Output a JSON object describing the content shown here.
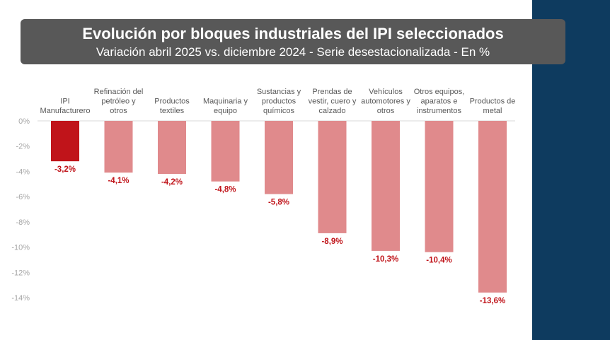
{
  "header": {
    "title": "Evolución por bloques industriales del IPI seleccionados",
    "subtitle": "Variación abril 2025 vs. diciembre 2024  - Serie desestacionalizada - En %"
  },
  "colors": {
    "highlight_bar": "#c0141a",
    "bar": "#e08a8c",
    "highlight_label": "#c0141a",
    "label": "#c0141a",
    "side_band": "#0e3b5f",
    "title_bg": "#585858"
  },
  "chart_data": {
    "type": "bar",
    "categories": [
      [
        "IPI",
        "Manufacturero"
      ],
      [
        "Refinación del",
        "petróleo y",
        "otros"
      ],
      [
        "Productos",
        "textiles"
      ],
      [
        "Maquinaria y",
        "equipo"
      ],
      [
        "Sustancias y",
        "productos",
        "químicos"
      ],
      [
        "Prendas de",
        "vestir, cuero y",
        "calzado"
      ],
      [
        "Vehículos",
        "automotores y",
        "otros"
      ],
      [
        "Otros equipos,",
        "aparatos e",
        "instrumentos"
      ],
      [
        "Productos de",
        "metal"
      ]
    ],
    "values": [
      -3.2,
      -4.1,
      -4.2,
      -4.8,
      -5.8,
      -8.9,
      -10.3,
      -10.4,
      -13.6
    ],
    "data_labels": [
      "-3,2%",
      "-4,1%",
      "-4,2%",
      "-4,8%",
      "-5,8%",
      "-8,9%",
      "-10,3%",
      "-10,4%",
      "-13,6%"
    ],
    "highlight_index": 0,
    "y_ticks": [
      0,
      -2,
      -4,
      -6,
      -8,
      -10,
      -12,
      -14
    ],
    "y_tick_labels": [
      "0%",
      "-2%",
      "-4%",
      "-6%",
      "-8%",
      "-10%",
      "-12%",
      "-14%"
    ],
    "ylim": [
      -14,
      0
    ],
    "grid": false,
    "legend": "none",
    "category_axis_position": "top"
  }
}
